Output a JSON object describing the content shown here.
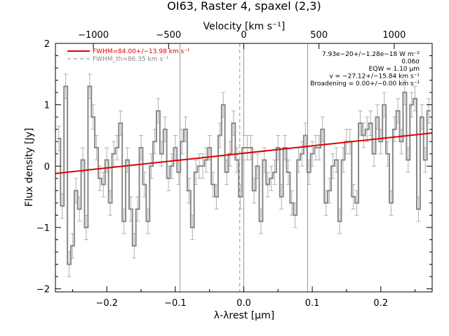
{
  "chart_data": {
    "type": "line",
    "title": "OI63, Raster 4, spaxel (2,3)",
    "xlabel": "λ-λrest [µm]",
    "ylabel": "Flux density [Jy]",
    "x2label": "Velocity [km s⁻¹]",
    "xlim": [
      -0.275,
      0.275
    ],
    "ylim": [
      -2.05,
      2.0
    ],
    "x_ticks": [
      -0.2,
      -0.1,
      0.0,
      0.1,
      0.2
    ],
    "x_tick_labels": [
      "−0.2",
      "−0.1",
      "0.0",
      "0.1",
      "0.2"
    ],
    "y_ticks": [
      -2,
      -1,
      0,
      1,
      2
    ],
    "y_tick_labels": [
      "−2",
      "−1",
      "0",
      "1",
      "2"
    ],
    "top_ticks_x": [
      -0.2196,
      -0.1098,
      0.0,
      0.1098,
      0.2196
    ],
    "top_tick_labels": [
      "−1000",
      "−500",
      "0",
      "500",
      "1000"
    ],
    "vertical_lines": [
      -0.0932,
      0.0,
      0.0932
    ],
    "dashed_line": -0.0059,
    "legend": [
      {
        "label": "FWHM=84.00+/−13.98 km s⁻¹",
        "style": "solid",
        "color": "#dd0000"
      },
      {
        "label": "FWHM_th=86.35 km s⁻¹",
        "style": "dashed",
        "color": "#888888"
      }
    ],
    "annotations": [
      "7.93e−20+/−1.28e−18 W m⁻²",
      "0.06σ",
      "EQW = 1.10 µm",
      "v = −27.12+/−15.84 km s⁻¹",
      "Broadening = 0.00+/−0.00 km s⁻¹"
    ],
    "fit_line": {
      "x": [
        -0.275,
        0.275
      ],
      "y": [
        -0.12,
        0.54
      ]
    },
    "series": [
      {
        "kind": "histogram",
        "x": [
          -0.27,
          -0.265,
          -0.26,
          -0.255,
          -0.25,
          -0.245,
          -0.24,
          -0.235,
          -0.23,
          -0.225,
          -0.22,
          -0.215,
          -0.21,
          -0.205,
          -0.2,
          -0.195,
          -0.19,
          -0.185,
          -0.18,
          -0.175,
          -0.17,
          -0.165,
          -0.16,
          -0.155,
          -0.15,
          -0.145,
          -0.14,
          -0.135,
          -0.13,
          -0.125,
          -0.12,
          -0.115,
          -0.11,
          -0.105,
          -0.1,
          -0.095,
          -0.09,
          -0.085,
          -0.08,
          -0.075,
          -0.07,
          -0.065,
          -0.06,
          -0.055,
          -0.05,
          -0.045,
          -0.04,
          -0.035,
          -0.03,
          -0.025,
          -0.02,
          -0.015,
          -0.01,
          -0.005,
          0.0,
          0.005,
          0.01,
          0.015,
          0.02,
          0.025,
          0.03,
          0.035,
          0.04,
          0.045,
          0.05,
          0.055,
          0.06,
          0.065,
          0.07,
          0.075,
          0.08,
          0.085,
          0.09,
          0.095,
          0.1,
          0.105,
          0.11,
          0.115,
          0.12,
          0.125,
          0.13,
          0.135,
          0.14,
          0.145,
          0.15,
          0.155,
          0.16,
          0.165,
          0.17,
          0.175,
          0.18,
          0.185,
          0.19,
          0.195,
          0.2,
          0.205,
          0.21,
          0.215,
          0.22,
          0.225,
          0.23,
          0.235,
          0.24,
          0.245,
          0.25,
          0.255,
          0.26,
          0.265,
          0.27
        ],
        "y": [
          0.45,
          -0.65,
          1.3,
          -1.6,
          -1.3,
          -0.4,
          -0.7,
          0.1,
          -1.0,
          1.3,
          0.8,
          0.3,
          -0.2,
          -0.3,
          0.1,
          -0.6,
          0.2,
          0.3,
          0.7,
          -0.9,
          0.1,
          -0.7,
          -1.3,
          -0.7,
          0.3,
          -0.3,
          -0.9,
          0.0,
          0.4,
          0.9,
          0.2,
          0.6,
          -0.2,
          0.0,
          0.3,
          -0.1,
          0.4,
          0.6,
          -0.4,
          -1.0,
          -0.1,
          0.0,
          0.0,
          0.1,
          0.3,
          -0.3,
          -0.5,
          0.5,
          1.0,
          -0.1,
          0.2,
          0.7,
          0.1,
          -0.5,
          0.3,
          0.3,
          0.3,
          -0.4,
          0.0,
          -0.9,
          0.1,
          -0.3,
          -0.2,
          -0.1,
          0.3,
          -0.5,
          0.3,
          -0.1,
          -0.6,
          -0.8,
          0.1,
          0.2,
          0.5,
          -0.1,
          0.2,
          0.3,
          0.3,
          0.6,
          -0.6,
          -0.4,
          0.0,
          0.1,
          -0.9,
          0.1,
          0.4,
          0.4,
          -0.5,
          -0.6,
          0.7,
          0.5,
          0.6,
          0.7,
          0.2,
          0.8,
          0.4,
          1.0,
          0.2,
          -0.6,
          0.6,
          0.9,
          0.4,
          1.2,
          0.1,
          1.0,
          1.1,
          -0.7,
          0.8,
          0.1,
          0.9
        ],
        "yerr": 0.2,
        "color": "#888888"
      }
    ]
  }
}
